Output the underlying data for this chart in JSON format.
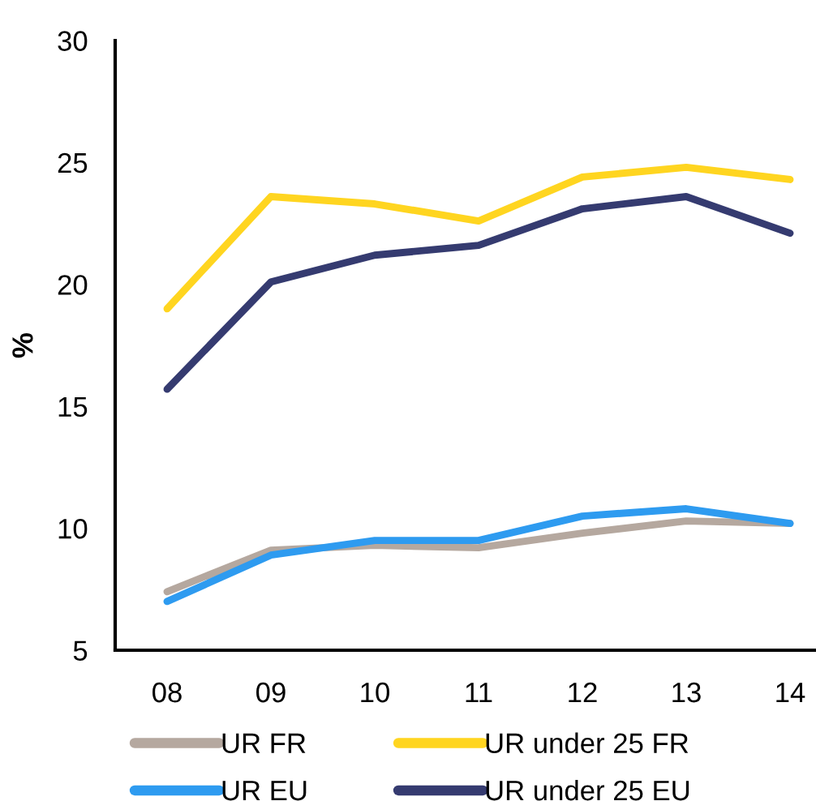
{
  "chart_data": {
    "type": "line",
    "ylabel": "%",
    "categories": [
      "08",
      "09",
      "10",
      "11",
      "12",
      "13",
      "14"
    ],
    "series": [
      {
        "name": "UR FR",
        "color": "#b5a89f",
        "values": [
          7.4,
          9.1,
          9.3,
          9.2,
          9.8,
          10.3,
          10.2
        ]
      },
      {
        "name": "UR EU",
        "color": "#2e9bf0",
        "values": [
          7.0,
          8.9,
          9.5,
          9.5,
          10.5,
          10.8,
          10.2
        ]
      },
      {
        "name": "UR under 25 FR",
        "color": "#ffd520",
        "values": [
          19.0,
          23.6,
          23.3,
          22.6,
          24.4,
          24.8,
          24.3
        ]
      },
      {
        "name": "UR under 25 EU",
        "color": "#353b70",
        "values": [
          15.7,
          20.1,
          21.2,
          21.6,
          23.1,
          23.6,
          22.1
        ]
      }
    ],
    "ylim": [
      5,
      30
    ],
    "yticks": [
      5,
      10,
      15,
      20,
      25,
      30
    ],
    "grid": false,
    "legend": "bottom",
    "marker": "none",
    "line_style": "solid"
  }
}
